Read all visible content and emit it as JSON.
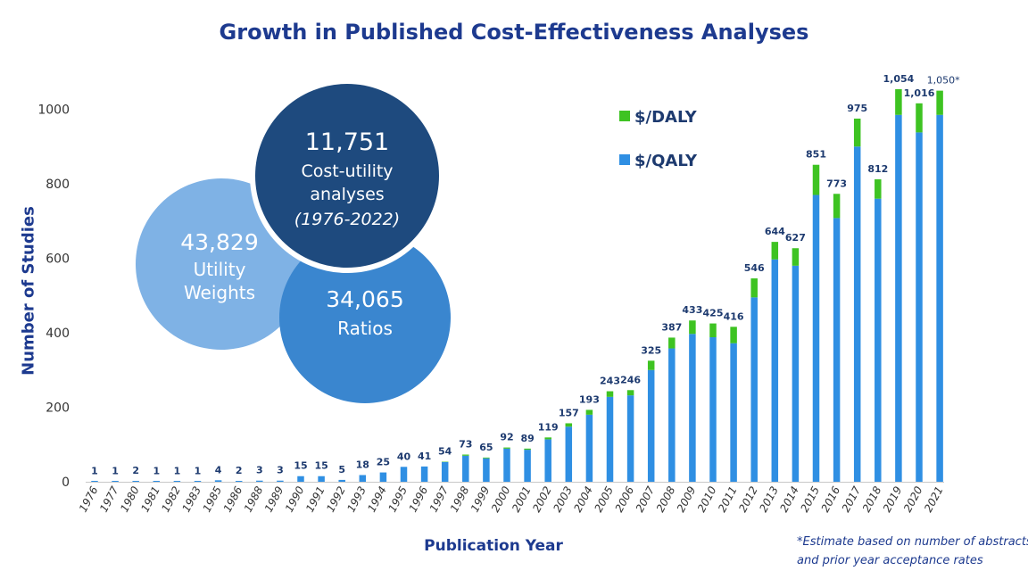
{
  "title": "Growth in Published Cost-Effectiveness Analyses",
  "footnote": {
    "line1": "*Estimate based on number of abstracts",
    "line2": "and prior year acceptance rates"
  },
  "bubbles": [
    {
      "value": "43,829",
      "label1": "Utility",
      "label2": "Weights",
      "color": "#7fb2e5"
    },
    {
      "value": "34,065",
      "label1": "Ratios",
      "label2": "",
      "color": "#3a86cf"
    },
    {
      "value": "11,751",
      "label1": "Cost-utility",
      "label2": "analyses",
      "label3": "(1976-2022)",
      "color": "#1e4a7e"
    }
  ],
  "colors": {
    "qaly": "#2f8fe3",
    "daly": "#3ec322",
    "title": "#1d3a8f"
  },
  "chart_data": {
    "type": "bar",
    "stacked": true,
    "title": "Growth in Published Cost-Effectiveness Analyses",
    "xlabel": "Publication Year",
    "ylabel": "Number of Studies",
    "ylim": [
      0,
      1000
    ],
    "yticks": [
      0,
      200,
      400,
      600,
      800,
      1000
    ],
    "legend_position": "top-right",
    "grid": false,
    "categories": [
      "1976",
      "1977",
      "1980",
      "1981",
      "1982",
      "1983",
      "1985",
      "1986",
      "1988",
      "1989",
      "1990",
      "1991",
      "1992",
      "1993",
      "1994",
      "1995",
      "1996",
      "1997",
      "1998",
      "1999",
      "2000",
      "2001",
      "2002",
      "2003",
      "2004",
      "2005",
      "2006",
      "2007",
      "2008",
      "2009",
      "2010",
      "2011",
      "2012",
      "2013",
      "2014",
      "2015",
      "2016",
      "2017",
      "2018",
      "2019",
      "2020",
      "2021"
    ],
    "totals": [
      1,
      1,
      2,
      1,
      1,
      1,
      4,
      2,
      3,
      3,
      15,
      15,
      5,
      18,
      25,
      40,
      41,
      54,
      73,
      65,
      92,
      89,
      119,
      157,
      193,
      243,
      246,
      325,
      387,
      433,
      425,
      416,
      546,
      644,
      627,
      851,
      773,
      975,
      812,
      1054,
      1016,
      1050
    ],
    "total_labels": [
      "1",
      "1",
      "2",
      "1",
      "1",
      "1",
      "4",
      "2",
      "3",
      "3",
      "15",
      "15",
      "5",
      "18",
      "25",
      "40",
      "41",
      "54",
      "73",
      "65",
      "92",
      "89",
      "119",
      "157",
      "193",
      "243",
      "246",
      "325",
      "387",
      "433",
      "425",
      "416",
      "546",
      "644",
      "627",
      "851",
      "773",
      "975",
      "812",
      "1,054",
      "1,016",
      "1,050*"
    ],
    "series": [
      {
        "name": "$/QALY",
        "values": [
          1,
          1,
          2,
          1,
          1,
          1,
          4,
          2,
          3,
          3,
          15,
          15,
          5,
          18,
          25,
          40,
          41,
          53,
          70,
          63,
          89,
          86,
          114,
          148,
          180,
          228,
          232,
          300,
          358,
          397,
          388,
          372,
          495,
          597,
          580,
          770,
          708,
          900,
          760,
          985,
          938,
          985
        ]
      },
      {
        "name": "$/DALY",
        "values": [
          0,
          0,
          0,
          0,
          0,
          0,
          0,
          0,
          0,
          0,
          0,
          0,
          0,
          0,
          0,
          0,
          0,
          1,
          3,
          2,
          3,
          3,
          5,
          9,
          13,
          15,
          14,
          25,
          29,
          36,
          37,
          44,
          51,
          47,
          47,
          81,
          65,
          75,
          52,
          69,
          78,
          65
        ]
      }
    ]
  }
}
